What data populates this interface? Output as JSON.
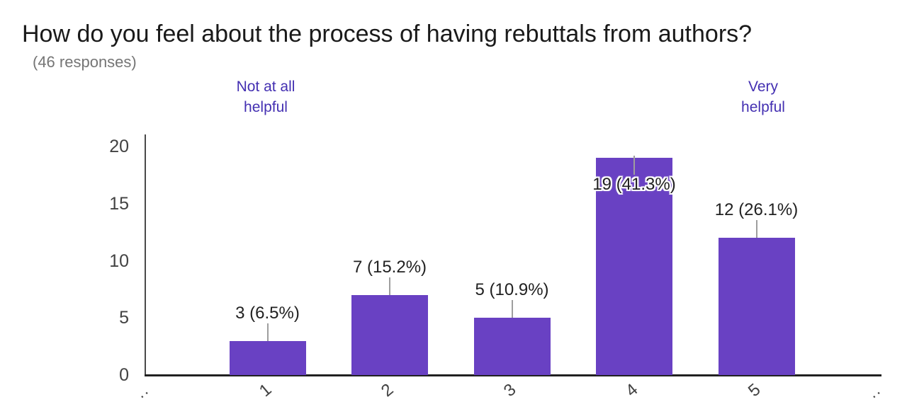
{
  "header": {
    "title": "How do you feel about the process of having rebuttals from authors?",
    "subtitle": "(46 responses)"
  },
  "scale_labels": {
    "low_line1": "Not at all",
    "low_line2": "helpful",
    "high_line1": "Very",
    "high_line2": "helpful"
  },
  "chart_data": {
    "type": "bar",
    "title": "How do you feel about the process of having rebuttals from authors?",
    "subtitle": "(46 responses)",
    "total_responses": 46,
    "categories": [
      "1",
      "2",
      "3",
      "4",
      "5"
    ],
    "values": [
      3,
      7,
      5,
      19,
      12
    ],
    "percentages": [
      6.5,
      15.2,
      10.9,
      41.3,
      26.1
    ],
    "value_labels": [
      "3 (6.5%)",
      "7 (15.2%)",
      "5 (10.9%)",
      "19 (41.3%)",
      "12 (26.1%)"
    ],
    "scale_low_label": "Not at all helpful",
    "scale_high_label": "Very helpful",
    "xlabel": "",
    "ylabel": "",
    "ylim": [
      0,
      20
    ],
    "yticks": [
      0,
      5,
      10,
      15,
      20
    ],
    "x_edge_marks": [
      "..",
      ".."
    ],
    "grid": false,
    "legend": "none",
    "bar_color": "#6941c3"
  },
  "colors": {
    "bar": "#6941c3",
    "scale_label_text": "#4430b2",
    "axis_text": "#424242",
    "value_text": "#212121",
    "title_text": "#1a1a1a",
    "subtitle_text": "#757575",
    "connector": "#9e9e9e",
    "background": "#ffffff"
  }
}
